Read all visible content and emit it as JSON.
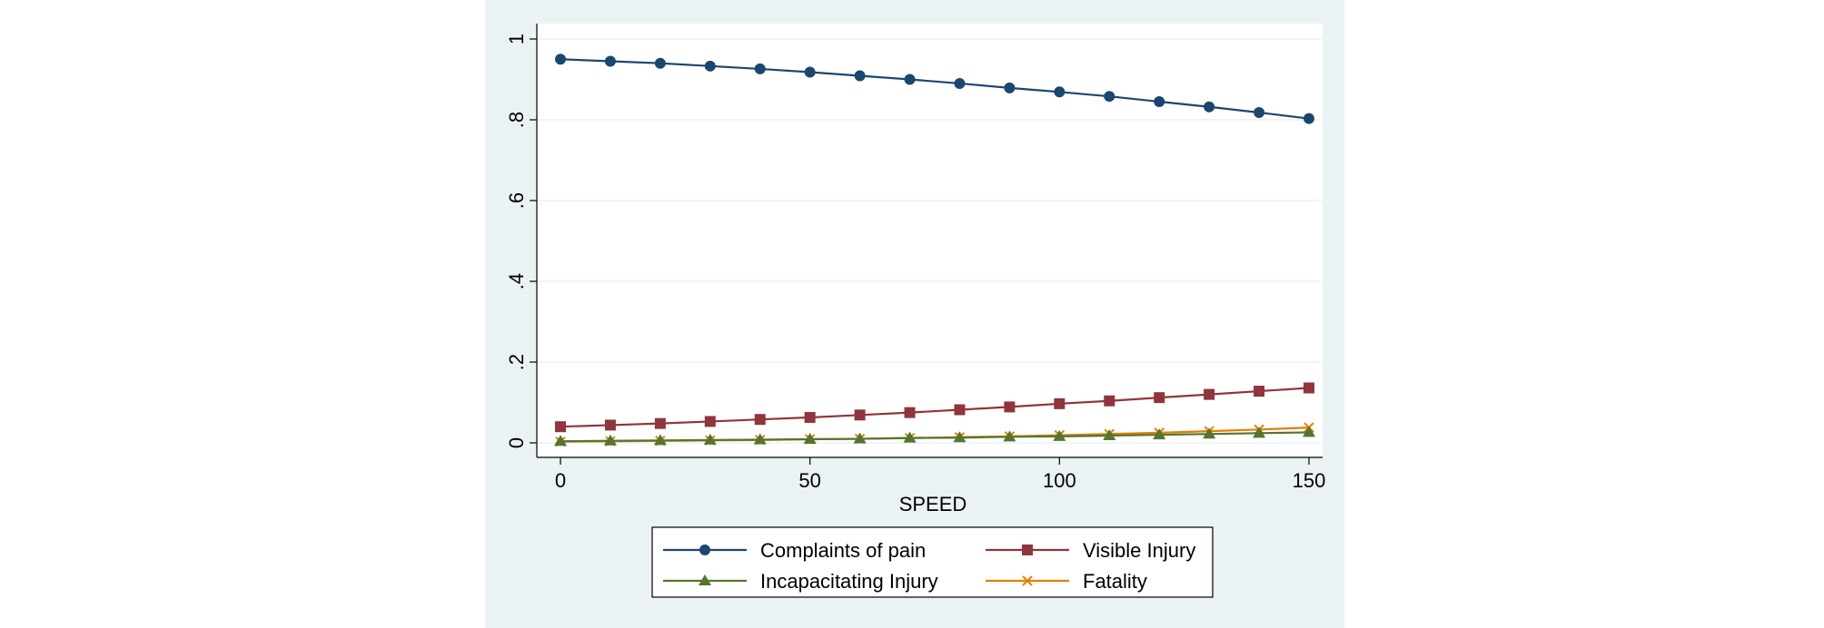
{
  "chart_data": {
    "type": "line",
    "title": "",
    "xlabel": "SPEED",
    "ylabel": "",
    "xlim": [
      0,
      150
    ],
    "ylim": [
      0,
      1
    ],
    "xticks": [
      0,
      50,
      100,
      150
    ],
    "xtick_labels": [
      "0",
      "50",
      "100",
      "150"
    ],
    "yticks": [
      0,
      0.2,
      0.4,
      0.6,
      0.8,
      1
    ],
    "ytick_labels": [
      "0",
      ".2",
      ".4",
      ".6",
      ".8",
      "1"
    ],
    "grid": true,
    "legend_position": "bottom",
    "x": [
      0,
      10,
      20,
      30,
      40,
      50,
      60,
      70,
      80,
      90,
      100,
      110,
      120,
      130,
      140,
      150
    ],
    "series": [
      {
        "name": "Complaints of pain",
        "color": "#1a476f",
        "marker": "circle",
        "values": [
          0.95,
          0.945,
          0.94,
          0.933,
          0.926,
          0.918,
          0.909,
          0.9,
          0.89,
          0.879,
          0.869,
          0.858,
          0.845,
          0.832,
          0.818,
          0.803
        ]
      },
      {
        "name": "Visible Injury",
        "color": "#90353b",
        "marker": "square",
        "values": [
          0.04,
          0.044,
          0.048,
          0.053,
          0.058,
          0.063,
          0.069,
          0.075,
          0.082,
          0.089,
          0.097,
          0.104,
          0.112,
          0.12,
          0.128,
          0.136
        ]
      },
      {
        "name": "Incapacitating Injury",
        "color": "#55752f",
        "marker": "triangle",
        "values": [
          0.004,
          0.005,
          0.006,
          0.007,
          0.008,
          0.009,
          0.01,
          0.012,
          0.013,
          0.015,
          0.016,
          0.018,
          0.02,
          0.022,
          0.024,
          0.026
        ]
      },
      {
        "name": "Fatality",
        "color": "#e37e00",
        "marker": "x",
        "values": [
          0.003,
          0.004,
          0.005,
          0.006,
          0.007,
          0.009,
          0.01,
          0.012,
          0.014,
          0.016,
          0.019,
          0.022,
          0.025,
          0.029,
          0.033,
          0.038
        ]
      }
    ],
    "colors": {
      "outer_background": "#eaf2f3",
      "plot_background": "#ffffff",
      "gridline": "#eaf2f3"
    }
  }
}
